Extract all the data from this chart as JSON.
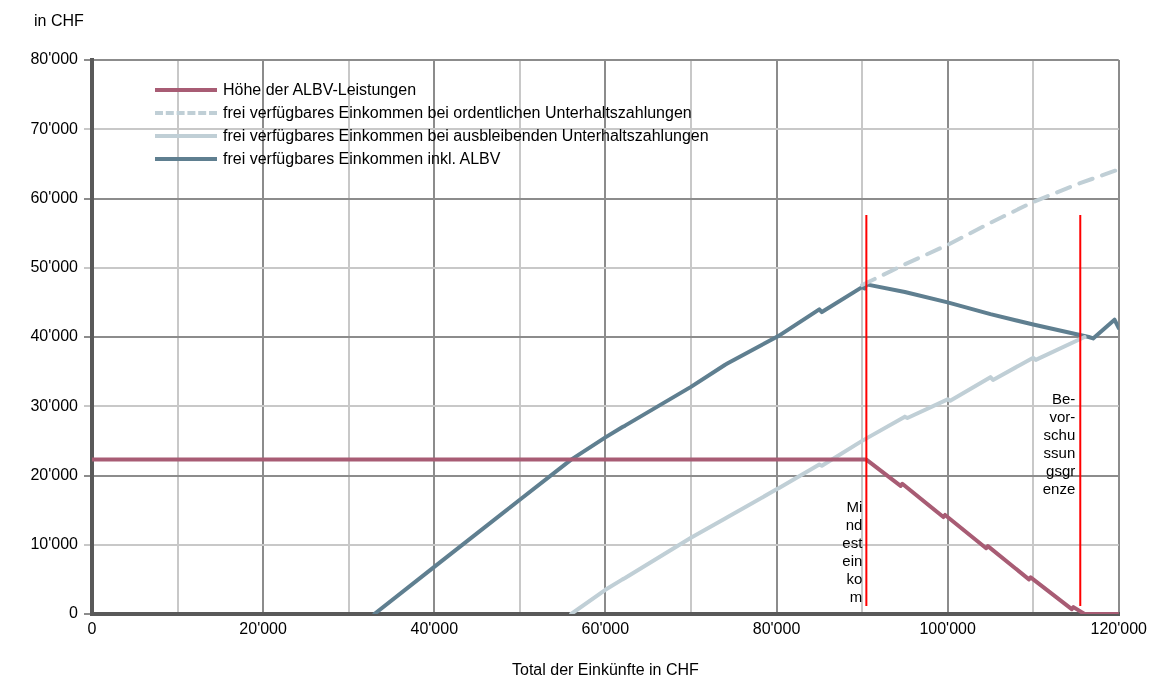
{
  "chart_data": {
    "type": "line",
    "xlabel": "Total der Einkünfte in CHF",
    "ylabel": "in CHF",
    "xlim": [
      0,
      120000
    ],
    "ylim": [
      0,
      80000
    ],
    "xticks": [
      0,
      {
        "value": 10000,
        "label": null
      },
      {
        "value": 20000,
        "label": "20'000"
      },
      {
        "value": 30000,
        "label": null
      },
      {
        "value": 40000,
        "label": "40'000"
      },
      {
        "value": 50000,
        "label": null
      },
      {
        "value": 60000,
        "label": "60'000"
      },
      {
        "value": 70000,
        "label": null
      },
      {
        "value": 80000,
        "label": "80'000"
      },
      {
        "value": 90000,
        "label": null
      },
      {
        "value": 100000,
        "label": "100'000"
      },
      {
        "value": 110000,
        "label": null
      },
      {
        "value": 120000,
        "label": "120'000"
      }
    ],
    "yticks": [
      0,
      {
        "value": 10000,
        "label": "10'000"
      },
      {
        "value": 20000,
        "label": "20'000"
      },
      {
        "value": 30000,
        "label": "30'000"
      },
      {
        "value": 40000,
        "label": "40'000"
      },
      {
        "value": 50000,
        "label": "50'000"
      },
      {
        "value": 60000,
        "label": "60'000"
      },
      {
        "value": 70000,
        "label": "70'000"
      },
      {
        "value": 80000,
        "label": "80'000"
      }
    ],
    "grid": true,
    "legend": "top left",
    "marker": "none",
    "series": [
      {
        "name": "Höhe der ALBV-Leistungen",
        "color": "#a85c74",
        "line_style": "solid",
        "x": [
          0,
          90500,
          94500,
          94700,
          99500,
          99700,
          104500,
          104700,
          109500,
          109700,
          114500,
          114700,
          116000,
          120000
        ],
        "values": [
          22300,
          22300,
          18500,
          18800,
          14000,
          14300,
          9500,
          9800,
          5000,
          5300,
          700,
          1000,
          0,
          0
        ]
      },
      {
        "name": "frei verfügbares Einkommen bei ordentlichen Unterhaltszahlungen",
        "color": "#c0cfd6",
        "line_style": "dashed",
        "x": [
          90000,
          95000,
          100000,
          105000,
          110000,
          115000,
          120000
        ],
        "values": [
          47500,
          50500,
          53300,
          56500,
          59500,
          62000,
          64200
        ]
      },
      {
        "name": "frei verfügbares Einkommen bei ausbleibenden Unterhaltszahlungen",
        "color": "#c0cfd6",
        "line_style": "solid",
        "x": [
          56000,
          60000,
          62000,
          62300,
          70000,
          74000,
          74300,
          80000,
          80300,
          85000,
          85300,
          90000,
          95000,
          95300,
          100000,
          100300,
          105000,
          105300,
          110000,
          110300,
          116000
        ],
        "values": [
          0,
          3500,
          5000,
          5200,
          11000,
          13800,
          14000,
          18000,
          18200,
          21600,
          21400,
          25000,
          28500,
          28300,
          31000,
          30800,
          34200,
          33800,
          37000,
          36700,
          40000
        ]
      },
      {
        "name": "frei verfügbares Einkommen inkl. ALBV",
        "color": "#5f7f90",
        "line_style": "solid",
        "x": [
          33000,
          40000,
          50000,
          56000,
          60000,
          62000,
          62300,
          70000,
          74000,
          74300,
          80000,
          80300,
          85000,
          85300,
          90000,
          90300,
          90500,
          95000,
          100000,
          105000,
          110000,
          116500,
          117000,
          119500,
          120000
        ],
        "values": [
          0,
          6800,
          16500,
          22300,
          25500,
          27000,
          27200,
          32800,
          36000,
          36200,
          40000,
          40200,
          44000,
          43600,
          47200,
          47000,
          47600,
          46500,
          45000,
          43300,
          41800,
          40000,
          39800,
          42500,
          41300
        ]
      }
    ],
    "ref_lines": [
      {
        "axis": "x",
        "value": 90500,
        "label": "Mindesteinkom",
        "color": "#ff0000"
      },
      {
        "axis": "x",
        "value": 115500,
        "label": "Be-vor-schussungsgrenze",
        "color": "#ff0000"
      }
    ]
  }
}
